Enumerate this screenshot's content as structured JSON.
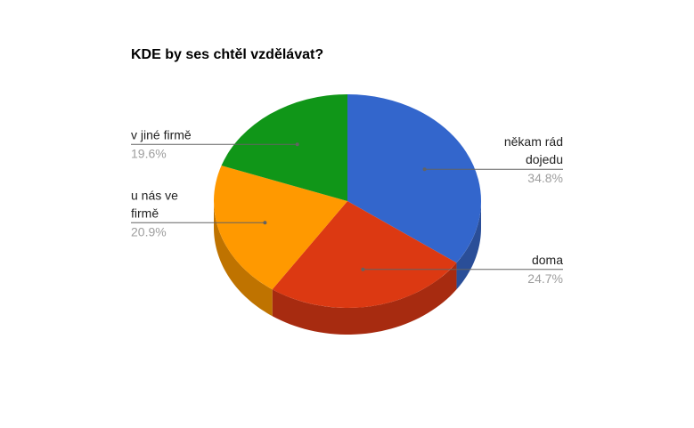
{
  "chart_data": {
    "type": "pie",
    "title": "KDE by ses chtěl vzdělávat?",
    "three_d": true,
    "start_angle_deg": 0,
    "direction": "clockwise",
    "slices": [
      {
        "label_lines": [
          "někam rád",
          "dojedu"
        ],
        "value": 34.8,
        "percent_label": "34.8%",
        "color": "#3366cc",
        "side_color": "#2a4e98"
      },
      {
        "label_lines": [
          "doma"
        ],
        "value": 24.7,
        "percent_label": "24.7%",
        "color": "#dc3912",
        "side_color": "#a72b10"
      },
      {
        "label_lines": [
          "u nás ve",
          "firmě"
        ],
        "value": 20.9,
        "percent_label": "20.9%",
        "color": "#ff9900",
        "side_color": "#bf7300"
      },
      {
        "label_lines": [
          "v jiné firmě"
        ],
        "value": 19.6,
        "percent_label": "19.6%",
        "color": "#109618",
        "side_color": "#0c7012"
      }
    ],
    "legend": "labeled"
  }
}
